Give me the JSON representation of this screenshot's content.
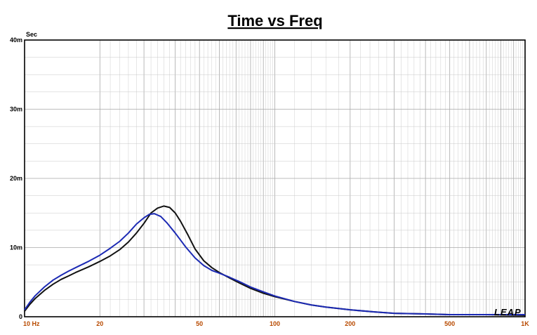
{
  "chart_data": {
    "type": "line",
    "title": "Time vs Freq",
    "ylabel": "Sec",
    "xlabel": "",
    "x_scale": "log",
    "xlim": [
      10,
      1000
    ],
    "ylim": [
      0,
      0.04
    ],
    "grid": true,
    "y_ticks": [
      {
        "value": 0,
        "label": "0"
      },
      {
        "value": 0.01,
        "label": "10m"
      },
      {
        "value": 0.02,
        "label": "20m"
      },
      {
        "value": 0.03,
        "label": "30m"
      },
      {
        "value": 0.04,
        "label": "40m"
      }
    ],
    "x_ticks": [
      {
        "value": 10,
        "label": "10  Hz"
      },
      {
        "value": 20,
        "label": "20"
      },
      {
        "value": 50,
        "label": "50"
      },
      {
        "value": 100,
        "label": "100"
      },
      {
        "value": 200,
        "label": "200"
      },
      {
        "value": 500,
        "label": "500"
      },
      {
        "value": 1000,
        "label": "1K"
      }
    ],
    "series": [
      {
        "color": "#111111",
        "points": [
          [
            10,
            0.0008
          ],
          [
            10.5,
            0.0018
          ],
          [
            11,
            0.0026
          ],
          [
            12,
            0.0038
          ],
          [
            13,
            0.0047
          ],
          [
            14,
            0.0054
          ],
          [
            15,
            0.0059
          ],
          [
            16,
            0.0064
          ],
          [
            18,
            0.0072
          ],
          [
            20,
            0.008
          ],
          [
            22,
            0.0088
          ],
          [
            24,
            0.0097
          ],
          [
            26,
            0.0108
          ],
          [
            28,
            0.0121
          ],
          [
            30,
            0.0135
          ],
          [
            32,
            0.015
          ],
          [
            34,
            0.0157
          ],
          [
            36,
            0.016
          ],
          [
            38,
            0.0158
          ],
          [
            40,
            0.015
          ],
          [
            42,
            0.0138
          ],
          [
            45,
            0.0118
          ],
          [
            48,
            0.0098
          ],
          [
            52,
            0.0081
          ],
          [
            56,
            0.0071
          ],
          [
            60,
            0.0064
          ],
          [
            66,
            0.0056
          ],
          [
            72,
            0.0049
          ],
          [
            80,
            0.0041
          ],
          [
            90,
            0.0034
          ],
          [
            100,
            0.0029
          ],
          [
            120,
            0.0022
          ],
          [
            140,
            0.0017
          ],
          [
            160,
            0.0014
          ],
          [
            200,
            0.001
          ],
          [
            250,
            0.0007
          ],
          [
            300,
            0.0005
          ],
          [
            400,
            0.0004
          ],
          [
            500,
            0.0003
          ],
          [
            700,
            0.0003
          ],
          [
            1000,
            0.0002
          ]
        ]
      },
      {
        "color": "#1c2ab4",
        "points": [
          [
            10,
            0.001
          ],
          [
            10.5,
            0.0021
          ],
          [
            11,
            0.003
          ],
          [
            12,
            0.0043
          ],
          [
            13,
            0.0053
          ],
          [
            14,
            0.006
          ],
          [
            15,
            0.0066
          ],
          [
            16,
            0.0071
          ],
          [
            18,
            0.008
          ],
          [
            20,
            0.0089
          ],
          [
            22,
            0.0099
          ],
          [
            24,
            0.0109
          ],
          [
            26,
            0.0121
          ],
          [
            28,
            0.0134
          ],
          [
            30,
            0.0143
          ],
          [
            31.5,
            0.0148
          ],
          [
            33,
            0.0149
          ],
          [
            35,
            0.0145
          ],
          [
            37,
            0.0136
          ],
          [
            40,
            0.0121
          ],
          [
            44,
            0.0101
          ],
          [
            48,
            0.0085
          ],
          [
            52,
            0.0074
          ],
          [
            56,
            0.0067
          ],
          [
            60,
            0.0063
          ],
          [
            66,
            0.0057
          ],
          [
            72,
            0.0051
          ],
          [
            80,
            0.0043
          ],
          [
            90,
            0.0036
          ],
          [
            100,
            0.003
          ],
          [
            120,
            0.0022
          ],
          [
            140,
            0.0017
          ],
          [
            160,
            0.0014
          ],
          [
            200,
            0.001
          ],
          [
            250,
            0.0007
          ],
          [
            300,
            0.0005
          ],
          [
            400,
            0.0004
          ],
          [
            500,
            0.0003
          ],
          [
            700,
            0.0003
          ],
          [
            1000,
            0.0003
          ]
        ]
      }
    ]
  }
}
